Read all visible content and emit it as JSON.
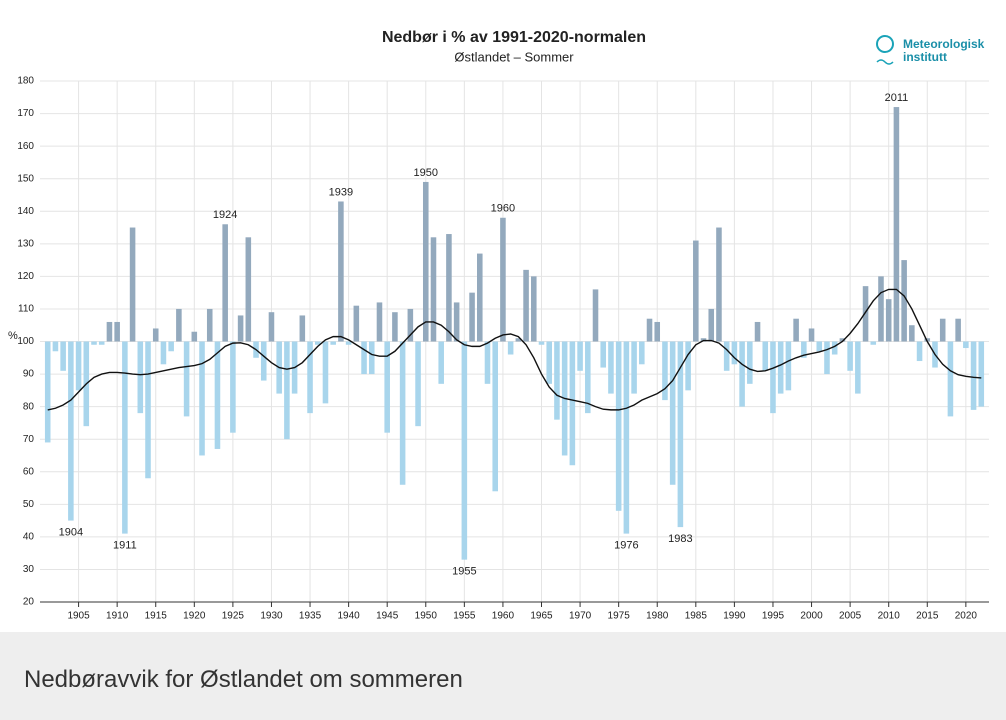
{
  "chart_data": {
    "type": "bar",
    "title": "Nedbør i % av 1991-2020-normalen",
    "subtitle": "Østlandet – Sommer",
    "y_label": "%",
    "base": 100,
    "x": [
      1901,
      1902,
      1903,
      1904,
      1905,
      1906,
      1907,
      1908,
      1909,
      1910,
      1911,
      1912,
      1913,
      1914,
      1915,
      1916,
      1917,
      1918,
      1919,
      1920,
      1921,
      1922,
      1923,
      1924,
      1925,
      1926,
      1927,
      1928,
      1929,
      1930,
      1931,
      1932,
      1933,
      1934,
      1935,
      1936,
      1937,
      1938,
      1939,
      1940,
      1941,
      1942,
      1943,
      1944,
      1945,
      1946,
      1947,
      1948,
      1949,
      1950,
      1951,
      1952,
      1953,
      1954,
      1955,
      1956,
      1957,
      1958,
      1959,
      1960,
      1961,
      1962,
      1963,
      1964,
      1965,
      1966,
      1967,
      1968,
      1969,
      1970,
      1971,
      1972,
      1973,
      1974,
      1975,
      1976,
      1977,
      1978,
      1979,
      1980,
      1981,
      1982,
      1983,
      1984,
      1985,
      1986,
      1987,
      1988,
      1989,
      1990,
      1991,
      1992,
      1993,
      1994,
      1995,
      1996,
      1997,
      1998,
      1999,
      2000,
      2001,
      2002,
      2003,
      2004,
      2005,
      2006,
      2007,
      2008,
      2009,
      2010,
      2011,
      2012,
      2013,
      2014,
      2015,
      2016,
      2017,
      2018,
      2019,
      2020,
      2021,
      2022
    ],
    "series": [
      {
        "type": "bar",
        "color_above": "#93a9bd",
        "color_below": "#a8d5ec",
        "values": [
          69,
          97,
          91,
          45,
          85,
          74,
          99,
          99,
          106,
          106,
          41,
          135,
          78,
          58,
          104,
          93,
          97,
          110,
          77,
          103,
          65,
          110,
          67,
          136,
          72,
          108,
          132,
          95,
          88,
          109,
          84,
          70,
          84,
          108,
          78,
          99,
          81,
          99,
          143,
          99,
          111,
          90,
          90,
          112,
          72,
          109,
          56,
          110,
          74,
          149,
          132,
          87,
          133,
          112,
          33,
          115,
          127,
          87,
          54,
          138,
          96,
          101,
          122,
          120,
          99,
          87,
          76,
          65,
          62,
          91,
          78,
          116,
          92,
          84,
          48,
          41,
          84,
          93,
          107,
          106,
          82,
          56,
          43,
          85,
          131,
          101,
          110,
          135,
          91,
          93,
          80,
          87,
          106,
          91,
          78,
          84,
          85,
          107,
          95,
          104,
          97,
          90,
          96,
          101,
          91,
          84,
          117,
          99,
          120,
          113,
          172,
          125,
          105,
          94,
          101,
          92,
          107,
          77,
          107,
          98,
          79,
          80
        ]
      },
      {
        "type": "line",
        "color": "#111111",
        "values": [
          79,
          79.5,
          80.5,
          82,
          84.5,
          87,
          89,
          90,
          90.5,
          90.5,
          90.3,
          90,
          89.8,
          90,
          90.5,
          91,
          91.5,
          92,
          92.3,
          92.6,
          93.2,
          94.5,
          96.5,
          98.5,
          99.5,
          99.6,
          99,
          97.5,
          95.5,
          93.5,
          92,
          91.5,
          92,
          93.5,
          96,
          98.5,
          100.5,
          101.5,
          101.5,
          100.5,
          99,
          97.5,
          96,
          95.5,
          95.5,
          97,
          99.5,
          102,
          104.5,
          106,
          106,
          105,
          103,
          100.5,
          99,
          98.5,
          98.5,
          99.5,
          101,
          102,
          102.3,
          101.5,
          99,
          95,
          90,
          86,
          83.5,
          82.5,
          82,
          81.5,
          81,
          80,
          79.2,
          79,
          79,
          79.5,
          80.5,
          82,
          83,
          84,
          85.5,
          88,
          92,
          96,
          99,
          100.3,
          100.3,
          99.5,
          97.5,
          95,
          93,
          91.5,
          90.8,
          91,
          91.8,
          92.8,
          94,
          95,
          95.8,
          96.3,
          96.8,
          97.5,
          98.5,
          100,
          102.5,
          105.5,
          109,
          112.5,
          115,
          116,
          116,
          114,
          110,
          105,
          100,
          96,
          93,
          91,
          89.8,
          89.3,
          89,
          88.8
        ]
      }
    ],
    "annotations": [
      "1904",
      "1911",
      "1924",
      "1939",
      "1950",
      "1955",
      "1960",
      "1976",
      "1983",
      "2011"
    ],
    "xlim": [
      1900,
      2023
    ],
    "xticks": [
      1905,
      1910,
      1915,
      1920,
      1925,
      1930,
      1935,
      1940,
      1945,
      1950,
      1955,
      1960,
      1965,
      1970,
      1975,
      1980,
      1985,
      1990,
      1995,
      2000,
      2005,
      2010,
      2015,
      2020
    ],
    "ylim": [
      20,
      180
    ],
    "yticks": [
      20,
      30,
      40,
      50,
      60,
      70,
      80,
      90,
      100,
      110,
      120,
      130,
      140,
      150,
      160,
      170,
      180
    ],
    "grid": true
  },
  "logo": {
    "line1": "Meteorologisk",
    "line2": "institutt"
  },
  "caption": "Nedbøravvik for Østlandet om sommeren"
}
